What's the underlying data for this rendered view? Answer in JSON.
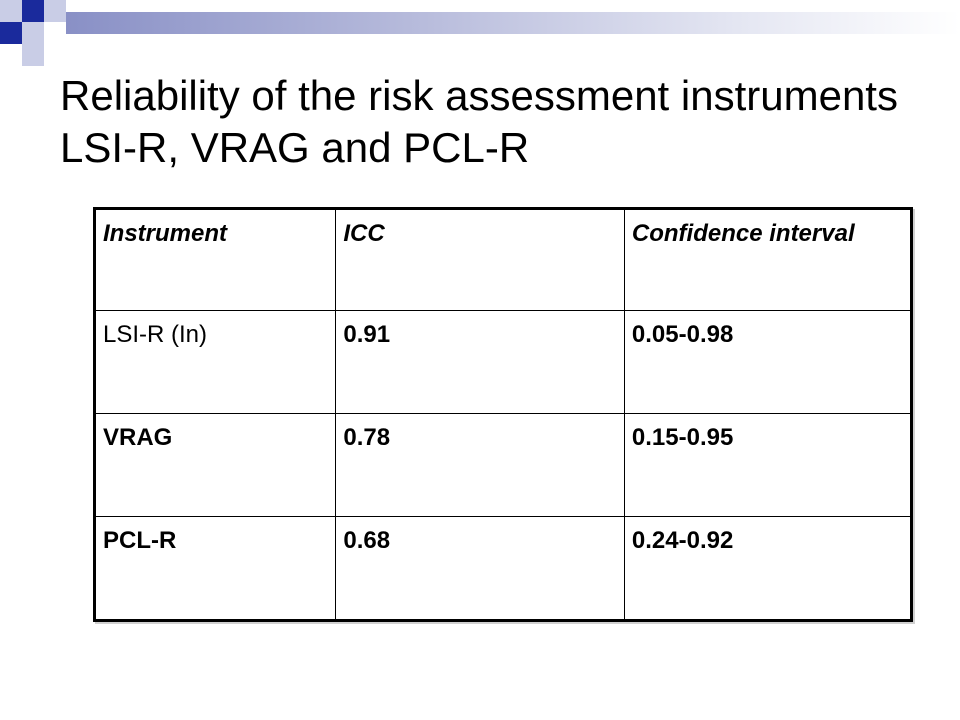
{
  "slide": {
    "title": "Reliability of the risk assessment instruments LSI-R, VRAG and PCL-R"
  },
  "table": {
    "headers": [
      "Instrument",
      "ICC",
      "Confidence interval"
    ],
    "rows": [
      [
        "LSI-R (In)",
        "0.91",
        "0.05-0.98"
      ],
      [
        "VRAG",
        "0.78",
        "0.15-0.95"
      ],
      [
        "PCL-R",
        "0.68",
        "0.24-0.92"
      ]
    ]
  },
  "colors": {
    "accent_dark": "#1a2a9c",
    "accent_light": "#c9cde6"
  }
}
